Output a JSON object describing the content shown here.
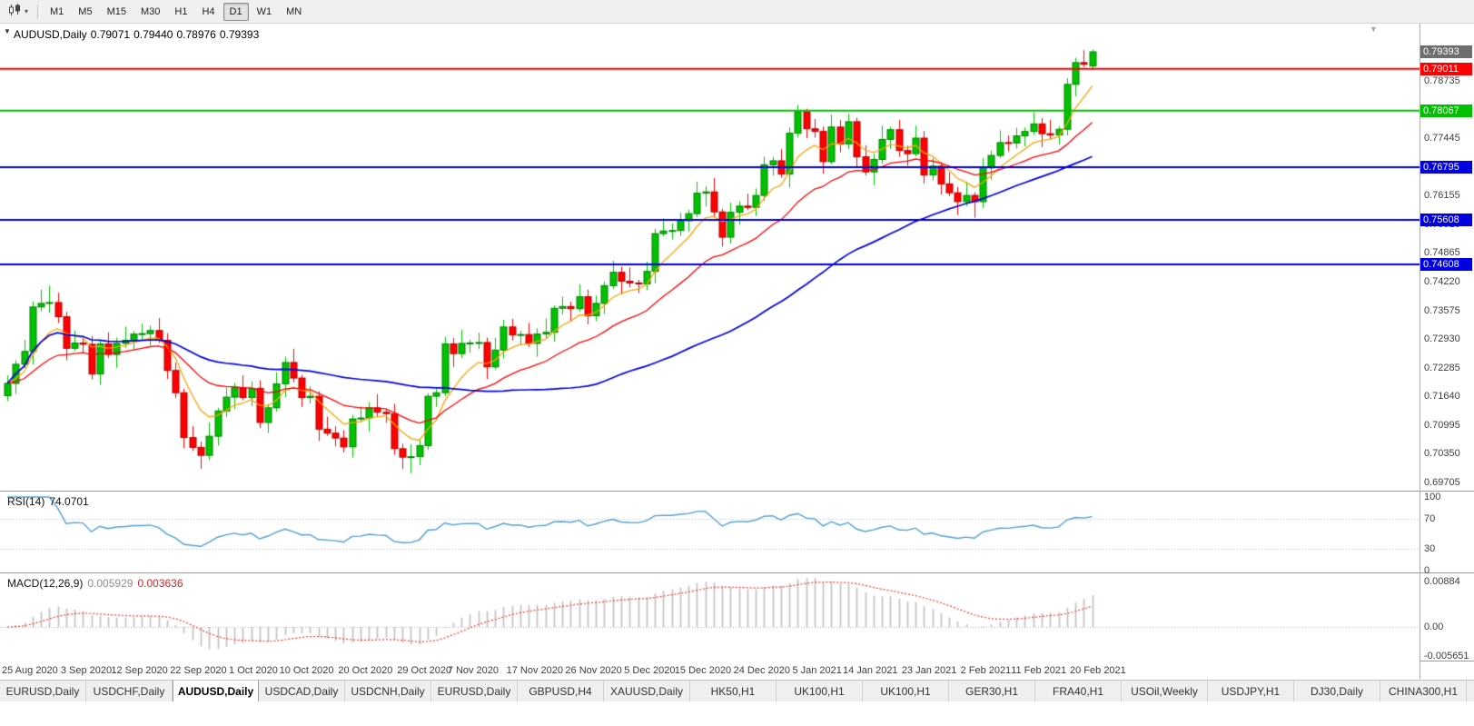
{
  "toolbar": {
    "timeframes": [
      "M1",
      "M5",
      "M15",
      "M30",
      "H1",
      "H4",
      "D1",
      "W1",
      "MN"
    ],
    "selected_timeframe": "D1"
  },
  "chart_header": {
    "symbol": "AUDUSD,Daily",
    "open": "0.79071",
    "high": "0.79440",
    "low": "0.78976",
    "close": "0.79393"
  },
  "chart_data": {
    "type": "candlestick",
    "symbol": "AUDUSD",
    "period": "Daily",
    "anchor_price": "0.79393",
    "colors": {
      "up": "#00c200",
      "up_border": "#008200",
      "down": "#ff0000",
      "down_border": "#b00000"
    },
    "candles": [
      [
        0.7165,
        0.7211,
        0.7153,
        0.7193
      ],
      [
        0.7193,
        0.7245,
        0.7169,
        0.7236
      ],
      [
        0.7236,
        0.7291,
        0.7228,
        0.7265
      ],
      [
        0.7265,
        0.7378,
        0.7235,
        0.7365
      ],
      [
        0.7365,
        0.7404,
        0.7355,
        0.7373
      ],
      [
        0.7373,
        0.7413,
        0.7352,
        0.7375
      ],
      [
        0.7375,
        0.7397,
        0.7329,
        0.7343
      ],
      [
        0.7343,
        0.7354,
        0.7245,
        0.7272
      ],
      [
        0.7272,
        0.7312,
        0.7266,
        0.7284
      ],
      [
        0.7284,
        0.73,
        0.7262,
        0.7281
      ],
      [
        0.7281,
        0.7299,
        0.7202,
        0.7214
      ],
      [
        0.7214,
        0.7291,
        0.719,
        0.7282
      ],
      [
        0.7282,
        0.7308,
        0.725,
        0.7258
      ],
      [
        0.7258,
        0.7296,
        0.7228,
        0.7283
      ],
      [
        0.7283,
        0.7321,
        0.7273,
        0.729
      ],
      [
        0.729,
        0.7311,
        0.7269,
        0.7304
      ],
      [
        0.7304,
        0.7327,
        0.729,
        0.7305
      ],
      [
        0.7305,
        0.7323,
        0.7278,
        0.7312
      ],
      [
        0.7312,
        0.734,
        0.7284,
        0.729
      ],
      [
        0.729,
        0.7306,
        0.7203,
        0.7222
      ],
      [
        0.7222,
        0.724,
        0.716,
        0.7172
      ],
      [
        0.7172,
        0.7181,
        0.7047,
        0.7071
      ],
      [
        0.7071,
        0.7097,
        0.7041,
        0.7049
      ],
      [
        0.7049,
        0.7062,
        0.7001,
        0.7031
      ],
      [
        0.7031,
        0.7105,
        0.7021,
        0.7074
      ],
      [
        0.7074,
        0.7138,
        0.7053,
        0.7131
      ],
      [
        0.7131,
        0.7184,
        0.7117,
        0.7162
      ],
      [
        0.7162,
        0.7194,
        0.7135,
        0.7183
      ],
      [
        0.7183,
        0.7211,
        0.7155,
        0.7161
      ],
      [
        0.7161,
        0.7198,
        0.7142,
        0.7182
      ],
      [
        0.7182,
        0.72,
        0.7093,
        0.7105
      ],
      [
        0.7105,
        0.7147,
        0.7081,
        0.7138
      ],
      [
        0.7138,
        0.7218,
        0.713,
        0.7192
      ],
      [
        0.7192,
        0.7253,
        0.7162,
        0.724
      ],
      [
        0.724,
        0.7271,
        0.7195,
        0.7205
      ],
      [
        0.7205,
        0.7212,
        0.714,
        0.7161
      ],
      [
        0.7161,
        0.7186,
        0.7147,
        0.7164
      ],
      [
        0.7164,
        0.7175,
        0.7063,
        0.709
      ],
      [
        0.709,
        0.7118,
        0.7075,
        0.7081
      ],
      [
        0.7081,
        0.7097,
        0.7051,
        0.707
      ],
      [
        0.707,
        0.7088,
        0.7038,
        0.705
      ],
      [
        0.705,
        0.7122,
        0.7026,
        0.7113
      ],
      [
        0.7113,
        0.7141,
        0.7105,
        0.7115
      ],
      [
        0.7115,
        0.7151,
        0.7085,
        0.7138
      ],
      [
        0.7138,
        0.7169,
        0.7118,
        0.7128
      ],
      [
        0.7128,
        0.7135,
        0.7104,
        0.7125
      ],
      [
        0.7125,
        0.7147,
        0.7032,
        0.7046
      ],
      [
        0.7046,
        0.7057,
        0.7,
        0.7027
      ],
      [
        0.7027,
        0.7056,
        0.6991,
        0.7028
      ],
      [
        0.7028,
        0.7069,
        0.7009,
        0.7053
      ],
      [
        0.7053,
        0.7171,
        0.7043,
        0.7164
      ],
      [
        0.7164,
        0.7181,
        0.714,
        0.7172
      ],
      [
        0.7172,
        0.7298,
        0.7164,
        0.7282
      ],
      [
        0.7282,
        0.7295,
        0.723,
        0.726
      ],
      [
        0.726,
        0.7314,
        0.725,
        0.7283
      ],
      [
        0.7283,
        0.7291,
        0.7262,
        0.7284
      ],
      [
        0.7284,
        0.7307,
        0.727,
        0.7285
      ],
      [
        0.7285,
        0.7296,
        0.7203,
        0.723
      ],
      [
        0.723,
        0.7296,
        0.7224,
        0.7268
      ],
      [
        0.7268,
        0.7336,
        0.7249,
        0.732
      ],
      [
        0.732,
        0.7338,
        0.729,
        0.7302
      ],
      [
        0.7302,
        0.7312,
        0.7278,
        0.7303
      ],
      [
        0.7303,
        0.7329,
        0.7275,
        0.7283
      ],
      [
        0.7283,
        0.7317,
        0.7253,
        0.7304
      ],
      [
        0.7304,
        0.7339,
        0.7294,
        0.7308
      ],
      [
        0.7308,
        0.7369,
        0.7287,
        0.7362
      ],
      [
        0.7362,
        0.7388,
        0.7348,
        0.7366
      ],
      [
        0.7366,
        0.7377,
        0.7334,
        0.7361
      ],
      [
        0.7361,
        0.7416,
        0.7355,
        0.7388
      ],
      [
        0.7388,
        0.7404,
        0.7326,
        0.7345
      ],
      [
        0.7345,
        0.7391,
        0.7333,
        0.7373
      ],
      [
        0.7373,
        0.7422,
        0.7349,
        0.7413
      ],
      [
        0.7413,
        0.7469,
        0.7405,
        0.7443
      ],
      [
        0.7443,
        0.7456,
        0.7393,
        0.7423
      ],
      [
        0.7423,
        0.7454,
        0.7409,
        0.7419
      ],
      [
        0.7419,
        0.7426,
        0.7396,
        0.7417
      ],
      [
        0.7417,
        0.7467,
        0.7403,
        0.7445
      ],
      [
        0.7445,
        0.7541,
        0.7418,
        0.753
      ],
      [
        0.753,
        0.7564,
        0.7524,
        0.7536
      ],
      [
        0.7536,
        0.7553,
        0.7517,
        0.7537
      ],
      [
        0.7537,
        0.7577,
        0.7525,
        0.7559
      ],
      [
        0.7559,
        0.7584,
        0.7535,
        0.7575
      ],
      [
        0.7575,
        0.7647,
        0.7567,
        0.7621
      ],
      [
        0.7621,
        0.7637,
        0.7591,
        0.7624
      ],
      [
        0.7624,
        0.7655,
        0.7569,
        0.7579
      ],
      [
        0.7579,
        0.7586,
        0.7501,
        0.7522
      ],
      [
        0.7522,
        0.76,
        0.7508,
        0.7578
      ],
      [
        0.7578,
        0.7603,
        0.7551,
        0.7592
      ],
      [
        0.7592,
        0.762,
        0.7583,
        0.7589
      ],
      [
        0.7589,
        0.7632,
        0.757,
        0.7616
      ],
      [
        0.7616,
        0.7703,
        0.7604,
        0.7685
      ],
      [
        0.7685,
        0.7703,
        0.7661,
        0.7694
      ],
      [
        0.7694,
        0.772,
        0.7656,
        0.7664
      ],
      [
        0.7664,
        0.7769,
        0.7634,
        0.7756
      ],
      [
        0.7756,
        0.782,
        0.7746,
        0.7804
      ],
      [
        0.7804,
        0.7811,
        0.7745,
        0.7766
      ],
      [
        0.7766,
        0.7788,
        0.7746,
        0.776
      ],
      [
        0.776,
        0.7771,
        0.7665,
        0.7692
      ],
      [
        0.7692,
        0.7798,
        0.7686,
        0.777
      ],
      [
        0.777,
        0.7786,
        0.7713,
        0.7732
      ],
      [
        0.7732,
        0.78,
        0.772,
        0.7782
      ],
      [
        0.7782,
        0.7791,
        0.7679,
        0.7703
      ],
      [
        0.7703,
        0.7729,
        0.7661,
        0.7669
      ],
      [
        0.7669,
        0.771,
        0.7639,
        0.7697
      ],
      [
        0.7697,
        0.7773,
        0.7687,
        0.7742
      ],
      [
        0.7742,
        0.7771,
        0.7721,
        0.7764
      ],
      [
        0.7764,
        0.7786,
        0.7703,
        0.7717
      ],
      [
        0.7717,
        0.7728,
        0.7683,
        0.771
      ],
      [
        0.771,
        0.7773,
        0.7704,
        0.7745
      ],
      [
        0.7745,
        0.7761,
        0.7643,
        0.7662
      ],
      [
        0.7662,
        0.77,
        0.765,
        0.7682
      ],
      [
        0.7682,
        0.7691,
        0.7618,
        0.7642
      ],
      [
        0.7642,
        0.7668,
        0.7614,
        0.7622
      ],
      [
        0.7622,
        0.7635,
        0.7572,
        0.7602
      ],
      [
        0.7602,
        0.7647,
        0.7592,
        0.7616
      ],
      [
        0.7616,
        0.7623,
        0.7566,
        0.7602
      ],
      [
        0.7602,
        0.77,
        0.7588,
        0.7678
      ],
      [
        0.7678,
        0.7717,
        0.7651,
        0.7706
      ],
      [
        0.7706,
        0.7763,
        0.77,
        0.7735
      ],
      [
        0.7735,
        0.7751,
        0.7715,
        0.7734
      ],
      [
        0.7734,
        0.7768,
        0.7722,
        0.775
      ],
      [
        0.775,
        0.7769,
        0.7726,
        0.776
      ],
      [
        0.776,
        0.7803,
        0.7752,
        0.7777
      ],
      [
        0.7777,
        0.779,
        0.7725,
        0.7755
      ],
      [
        0.7755,
        0.7786,
        0.7742,
        0.7752
      ],
      [
        0.7752,
        0.7772,
        0.7731,
        0.7765
      ],
      [
        0.7765,
        0.788,
        0.7751,
        0.7866
      ],
      [
        0.7866,
        0.7926,
        0.7839,
        0.7915
      ],
      [
        0.7915,
        0.7943,
        0.7905,
        0.7911
      ],
      [
        0.79071,
        0.7944,
        0.78976,
        0.79393
      ]
    ],
    "moving_averages": [
      {
        "period": 7,
        "type": "ema",
        "color": "#ffa200",
        "width": 1.3
      },
      {
        "period": 20,
        "type": "ema",
        "color": "#ff0000",
        "width": 1.3
      },
      {
        "period": 50,
        "type": "sma",
        "color": "#0000dc",
        "width": 1.7
      }
    ],
    "levels": [
      {
        "price": "0.79011",
        "value": 0.79011,
        "color": "#ff0000"
      },
      {
        "price": "0.78067",
        "value": 0.78067,
        "color": "#00c000"
      },
      {
        "price": "0.76795",
        "value": 0.76795,
        "color": "#0000e0"
      },
      {
        "price": "0.75608",
        "value": 0.75608,
        "color": "#0000e0"
      },
      {
        "price": "0.74608",
        "value": 0.74608,
        "color": "#0000e0"
      }
    ],
    "current_price_tag_color": "#6e6e6e",
    "y_axis_ticks": [
      "0.78735",
      "0.77445",
      "0.76155",
      "0.75510",
      "0.74865",
      "0.74220",
      "0.73575",
      "0.72930",
      "0.72285",
      "0.71640",
      "0.70995",
      "0.70350",
      "0.69705"
    ],
    "x_axis_dates": [
      "25 Aug 2020",
      "3 Sep 2020",
      "12 Sep 2020",
      "22 Sep 2020",
      "1 Oct 2020",
      "10 Oct 2020",
      "20 Oct 2020",
      "29 Oct 2020",
      "7 Nov 2020",
      "17 Nov 2020",
      "26 Nov 2020",
      "5 Dec 2020",
      "15 Dec 2020",
      "24 Dec 2020",
      "5 Jan 2021",
      "14 Jan 2021",
      "23 Jan 2021",
      "2 Feb 2021",
      "11 Feb 2021",
      "20 Feb 2021"
    ],
    "indicators": {
      "rsi": {
        "label": "RSI(14)",
        "value": "74.0701",
        "period": 14,
        "color": "#4e9fd4",
        "scale_labels": [
          "100",
          "70",
          "30",
          "0"
        ],
        "grid_levels": [
          70,
          30
        ]
      },
      "macd": {
        "label": "MACD(12,26,9)",
        "value_main": "0.005929",
        "value_signal": "0.003636",
        "fast_period": 12,
        "slow_period": 26,
        "signal_period": 9,
        "histogram_color": "#c0c0c0",
        "signal_color": "#ff3333",
        "scale_max": "0.00884",
        "scale_zero": "0.00",
        "scale_min": "-0.005651"
      }
    }
  },
  "tabs": {
    "items": [
      "EURUSD,Daily",
      "USDCHF,Daily",
      "AUDUSD,Daily",
      "USDCAD,Daily",
      "USDCNH,Daily",
      "EURUSD,Daily",
      "GBPUSD,H4",
      "XAUUSD,Daily",
      "HK50,H1",
      "UK100,H1",
      "UK100,H1",
      "GER30,H1",
      "FRA40,H1",
      "USOil,Weekly",
      "USDJPY,H1",
      "DJ30,Daily",
      "CHINA300,H1",
      "U"
    ],
    "active_index": 2
  }
}
